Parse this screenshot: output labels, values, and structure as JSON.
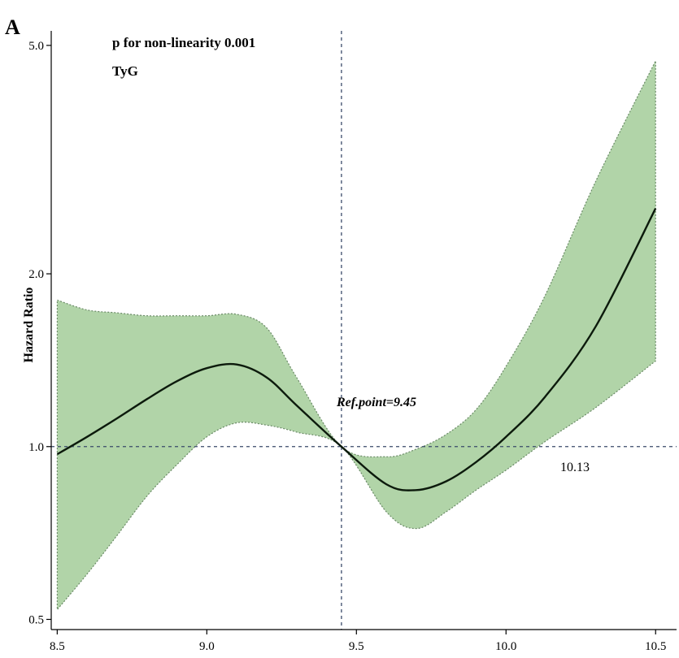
{
  "panel_label": "A",
  "annotations": {
    "p_value": "p for non-linearity 0.001",
    "variable": "TyG",
    "ref_point": "Ref.point=9.45",
    "crossing": "10.13"
  },
  "chart_data": {
    "type": "line",
    "ylabel": "Hazard Ratio",
    "xlabel": "",
    "x_ticks": [
      "8.5",
      "9.0",
      "9.5",
      "10.0",
      "10.5"
    ],
    "y_ticks": [
      "0.5",
      "1.0",
      "2.0",
      "5.0"
    ],
    "y_scale": "log",
    "xlim": [
      8.48,
      10.57
    ],
    "ylim": [
      0.48,
      5.3
    ],
    "reference_lines": {
      "x": 9.45,
      "y": 1.0
    },
    "colors": {
      "band": "#a8cf9e",
      "line": "#0c1a0c",
      "reference": "#3a4a6a"
    },
    "series": [
      {
        "x": [
          8.5,
          8.6,
          8.7,
          8.8,
          8.9,
          9.0,
          9.1,
          9.2,
          9.3,
          9.45,
          9.6,
          9.7,
          9.8,
          9.9,
          10.0,
          10.13,
          10.3,
          10.5
        ],
        "hazard_ratio": [
          0.97,
          1.04,
          1.12,
          1.21,
          1.3,
          1.37,
          1.39,
          1.32,
          1.18,
          1.0,
          0.86,
          0.84,
          0.87,
          0.94,
          1.04,
          1.22,
          1.62,
          2.6
        ],
        "ci_lower": [
          0.52,
          0.6,
          0.7,
          0.82,
          0.93,
          1.04,
          1.1,
          1.09,
          1.06,
          1.0,
          0.77,
          0.72,
          0.77,
          0.84,
          0.91,
          1.02,
          1.17,
          1.41
        ],
        "ci_upper": [
          1.8,
          1.73,
          1.71,
          1.69,
          1.69,
          1.69,
          1.7,
          1.61,
          1.32,
          1.0,
          0.96,
          0.99,
          1.05,
          1.16,
          1.38,
          1.83,
          2.9,
          4.7
        ]
      }
    ]
  }
}
